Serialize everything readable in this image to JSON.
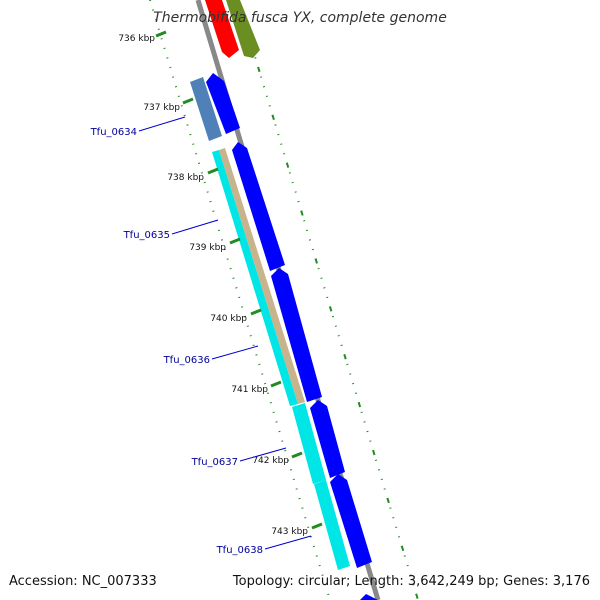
{
  "title": "Thermobifida fusca YX, complete genome",
  "footer": {
    "accession": "Accession: NC_007333",
    "stats": "Topology: circular; Length: 3,642,249 bp; Genes: 3,176"
  },
  "ticks": [
    {
      "label": "736 kbp"
    },
    {
      "label": "737 kbp"
    },
    {
      "label": "738 kbp"
    },
    {
      "label": "739 kbp"
    },
    {
      "label": "740 kbp"
    },
    {
      "label": "741 kbp"
    },
    {
      "label": "742 kbp"
    },
    {
      "label": "743 kbp"
    }
  ],
  "genes": [
    {
      "name": "Tfu_0634"
    },
    {
      "name": "Tfu_0635"
    },
    {
      "name": "Tfu_0636"
    },
    {
      "name": "Tfu_0637"
    },
    {
      "name": "Tfu_0638"
    }
  ],
  "colors": {
    "cds_forward": "#0000ff",
    "cds_outer": "#00e5e5",
    "gene_track": "#c8b48c",
    "steelblue_feature": "#4f81b8",
    "red_feature": "#ff0000",
    "olive_feature": "#6b8e23",
    "backbone": "#888888",
    "tick_mark": "#228b22",
    "gene_label": "#000099"
  }
}
